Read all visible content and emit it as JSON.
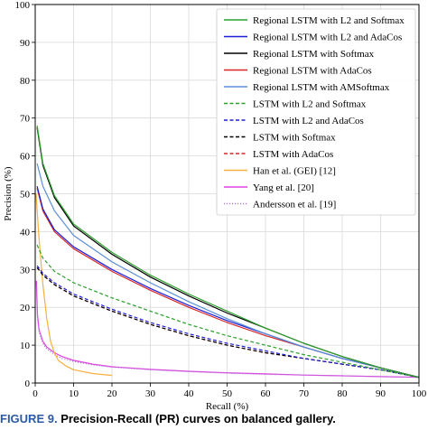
{
  "chart_data": {
    "type": "line",
    "xlabel": "Recall (%)",
    "ylabel": "Precision (%)",
    "xlim": [
      0,
      100
    ],
    "ylim": [
      0,
      100
    ],
    "x_ticks": [
      "0",
      "10",
      "20",
      "30",
      "40",
      "50",
      "60",
      "70",
      "80",
      "90",
      "100"
    ],
    "y_ticks": [
      "0",
      "10",
      "20",
      "30",
      "40",
      "50",
      "60",
      "70",
      "80",
      "90",
      "100"
    ],
    "grid": true,
    "legend_position": "upper right",
    "series": [
      {
        "name": "Regional LSTM with L2 and Softmax",
        "color": "#2ca02c",
        "style": "solid",
        "x": [
          0.5,
          2,
          5,
          10,
          20,
          30,
          40,
          50,
          60,
          70,
          80,
          90,
          100
        ],
        "y": [
          68,
          58,
          49.5,
          42,
          34.5,
          28.5,
          23.5,
          19,
          14.5,
          10.5,
          7,
          4,
          1.5
        ]
      },
      {
        "name": "Regional LSTM with L2 and AdaCos",
        "color": "#1f1fd6",
        "style": "solid",
        "x": [
          0.5,
          2,
          5,
          10,
          20,
          30,
          40,
          50,
          60,
          70,
          80,
          90,
          100
        ],
        "y": [
          52,
          46,
          40.5,
          36,
          30,
          25,
          20.5,
          16.5,
          13,
          9.5,
          6.5,
          4,
          1.5
        ]
      },
      {
        "name": "Regional LSTM with Softmax",
        "color": "#000000",
        "style": "solid",
        "x": [
          0.5,
          2,
          5,
          10,
          20,
          30,
          40,
          50,
          60,
          70,
          80,
          90,
          100
        ],
        "y": [
          67.5,
          57.5,
          49,
          41.5,
          34,
          28,
          23,
          18.5,
          14.5,
          10.5,
          7,
          4,
          1.5
        ]
      },
      {
        "name": "Regional LSTM with AdaCos",
        "color": "#d62728",
        "style": "solid",
        "x": [
          0.5,
          2,
          5,
          10,
          20,
          30,
          40,
          50,
          60,
          70,
          80,
          90,
          100
        ],
        "y": [
          51.5,
          45.5,
          40,
          35.5,
          29.5,
          24.5,
          20,
          16,
          12.5,
          9.5,
          6.5,
          4,
          1.5
        ]
      },
      {
        "name": "Regional LSTM with AMSoftmax",
        "color": "#5b8fd6",
        "style": "solid",
        "x": [
          0.5,
          2,
          5,
          10,
          20,
          30,
          40,
          50,
          60,
          70,
          80,
          90,
          100
        ],
        "y": [
          58,
          52,
          45.5,
          39,
          32,
          26.5,
          21.5,
          17,
          13,
          9.5,
          6.5,
          4,
          1.5
        ]
      },
      {
        "name": "LSTM with L2 and Softmax",
        "color": "#2ca02c",
        "style": "dashed",
        "x": [
          0.5,
          2,
          5,
          10,
          20,
          30,
          40,
          50,
          60,
          70,
          80,
          90,
          100
        ],
        "y": [
          36.5,
          33,
          29.5,
          26.5,
          22.5,
          19,
          15.5,
          12.5,
          10,
          7.5,
          5.5,
          3.5,
          1.5
        ]
      },
      {
        "name": "LSTM with L2 and AdaCos",
        "color": "#1f1fd6",
        "style": "dashed",
        "x": [
          0.5,
          2,
          5,
          10,
          20,
          30,
          40,
          50,
          60,
          70,
          80,
          90,
          100
        ],
        "y": [
          31,
          29,
          26.5,
          23.5,
          19.5,
          16,
          13,
          10.5,
          8.5,
          6.5,
          5,
          3.5,
          1.5
        ]
      },
      {
        "name": "LSTM with Softmax",
        "color": "#000000",
        "style": "dashed",
        "x": [
          0.5,
          2,
          5,
          10,
          20,
          30,
          40,
          50,
          60,
          70,
          80,
          90,
          100
        ],
        "y": [
          30.5,
          28.5,
          26,
          23,
          19,
          15.5,
          12.5,
          10,
          8,
          6.5,
          5,
          3.5,
          1.5
        ]
      },
      {
        "name": "LSTM with AdaCos",
        "color": "#d62728",
        "style": "dashed",
        "x": [
          0.5,
          2,
          5,
          10,
          20,
          30,
          40,
          50,
          60,
          70,
          80,
          90,
          100
        ],
        "y": [
          30.5,
          28.5,
          26,
          23,
          19,
          15.5,
          12.5,
          10,
          8,
          6.5,
          5,
          3.5,
          1.5
        ]
      },
      {
        "name": "Han et al. (GEI) [12]",
        "color": "#f5b041",
        "style": "solid",
        "x": [
          0.2,
          1,
          2,
          3,
          4,
          5,
          6,
          8,
          10,
          15,
          20
        ],
        "y": [
          50,
          38,
          26,
          17,
          11,
          8,
          6,
          4.5,
          3.5,
          2.5,
          2
        ]
      },
      {
        "name": "Yang et al. [20]",
        "color": "#e040e0",
        "style": "solid",
        "x": [
          0.3,
          0.6,
          1,
          2,
          3,
          5,
          7,
          10,
          15,
          20,
          30,
          40,
          50,
          60,
          70,
          80,
          90,
          100
        ],
        "y": [
          27,
          18,
          14,
          11,
          9.5,
          8,
          7,
          6,
          5,
          4.3,
          3.6,
          3.1,
          2.7,
          2.4,
          2.1,
          1.9,
          1.7,
          1.5
        ]
      },
      {
        "name": "Andersson et al. [19]",
        "color": "#b07ad8",
        "style": "dotted",
        "x": [
          0.3,
          0.6,
          1,
          2,
          3,
          5,
          7,
          10,
          15,
          20,
          30,
          40,
          50,
          60,
          70,
          80,
          90,
          100
        ],
        "y": [
          26,
          17,
          13.5,
          10.5,
          9,
          7.5,
          6.5,
          5.7,
          4.8,
          4.2,
          3.5,
          3,
          2.6,
          2.3,
          2.1,
          1.9,
          1.7,
          1.5
        ]
      }
    ]
  },
  "caption": {
    "label": "FIGURE 9.",
    "text": "Precision-Recall (PR) curves on balanced gallery."
  }
}
